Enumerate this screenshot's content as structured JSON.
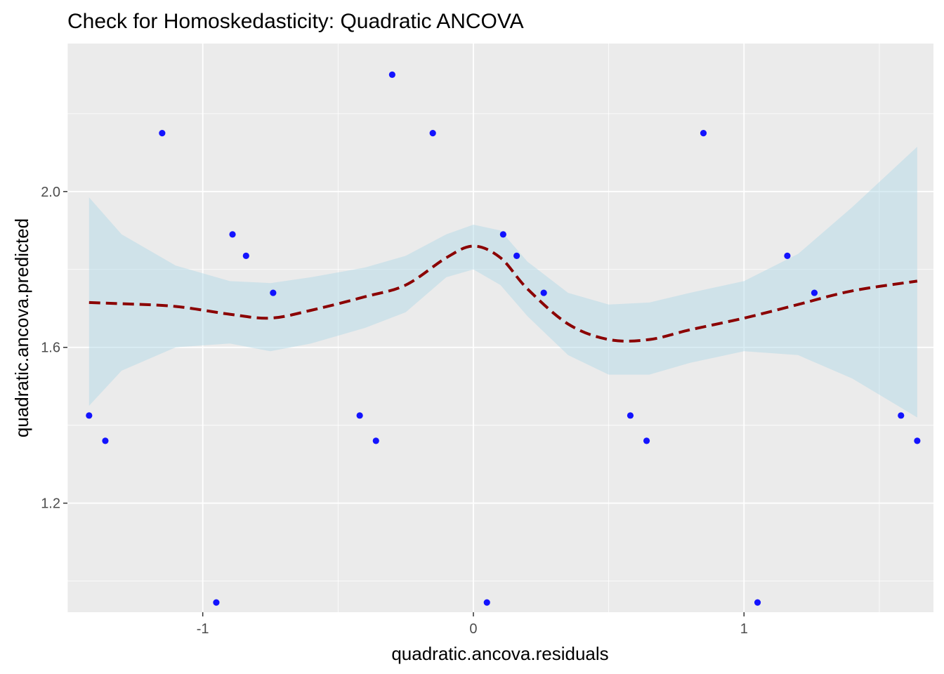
{
  "chart_data": {
    "type": "scatter",
    "title": "Check for Homoskedasticity: Quadratic ANCOVA",
    "xlabel": "quadratic.ancova.residuals",
    "ylabel": "quadratic.ancova.predicted",
    "xlim": [
      -1.5,
      1.7
    ],
    "ylim": [
      0.92,
      2.38
    ],
    "x_ticks": [
      -1,
      0,
      1
    ],
    "x_tick_labels": [
      "-1",
      "0",
      "1"
    ],
    "y_ticks": [
      1.2,
      1.6,
      2.0
    ],
    "y_tick_labels": [
      "1.2",
      "1.6",
      "2.0"
    ],
    "grid": true,
    "legend": "none",
    "colors": {
      "panel": "#ebebeb",
      "grid": "#ffffff",
      "points": "#0000ff",
      "smooth_line": "#8b0000",
      "ribbon": "#add8e6"
    },
    "points": [
      {
        "x": -1.42,
        "y": 1.425
      },
      {
        "x": -1.36,
        "y": 1.36
      },
      {
        "x": -1.15,
        "y": 2.15
      },
      {
        "x": -0.95,
        "y": 0.945
      },
      {
        "x": -0.89,
        "y": 1.89
      },
      {
        "x": -0.84,
        "y": 1.835
      },
      {
        "x": -0.74,
        "y": 1.74
      },
      {
        "x": -0.42,
        "y": 1.425
      },
      {
        "x": -0.36,
        "y": 1.36
      },
      {
        "x": -0.3,
        "y": 2.3
      },
      {
        "x": -0.15,
        "y": 2.15
      },
      {
        "x": 0.05,
        "y": 0.945
      },
      {
        "x": 0.11,
        "y": 1.89
      },
      {
        "x": 0.16,
        "y": 1.835
      },
      {
        "x": 0.26,
        "y": 1.74
      },
      {
        "x": 0.58,
        "y": 1.425
      },
      {
        "x": 0.64,
        "y": 1.36
      },
      {
        "x": 0.85,
        "y": 2.15
      },
      {
        "x": 1.05,
        "y": 0.945
      },
      {
        "x": 1.16,
        "y": 1.835
      },
      {
        "x": 1.26,
        "y": 1.74
      },
      {
        "x": 1.58,
        "y": 1.425
      },
      {
        "x": 1.64,
        "y": 1.36
      }
    ],
    "smooth": {
      "x": [
        -1.42,
        -1.3,
        -1.1,
        -0.9,
        -0.75,
        -0.6,
        -0.4,
        -0.25,
        -0.1,
        0.0,
        0.1,
        0.2,
        0.35,
        0.5,
        0.65,
        0.8,
        1.0,
        1.2,
        1.4,
        1.64
      ],
      "y": [
        1.715,
        1.712,
        1.705,
        1.685,
        1.675,
        1.695,
        1.73,
        1.76,
        1.83,
        1.86,
        1.83,
        1.75,
        1.66,
        1.62,
        1.62,
        1.645,
        1.675,
        1.71,
        1.745,
        1.77
      ],
      "lower": [
        1.45,
        1.54,
        1.6,
        1.61,
        1.59,
        1.61,
        1.65,
        1.69,
        1.78,
        1.8,
        1.76,
        1.68,
        1.58,
        1.53,
        1.53,
        1.56,
        1.59,
        1.58,
        1.52,
        1.42
      ],
      "upper": [
        1.985,
        1.89,
        1.81,
        1.77,
        1.765,
        1.78,
        1.805,
        1.835,
        1.89,
        1.915,
        1.9,
        1.82,
        1.74,
        1.71,
        1.715,
        1.74,
        1.77,
        1.84,
        1.96,
        2.115
      ]
    }
  }
}
